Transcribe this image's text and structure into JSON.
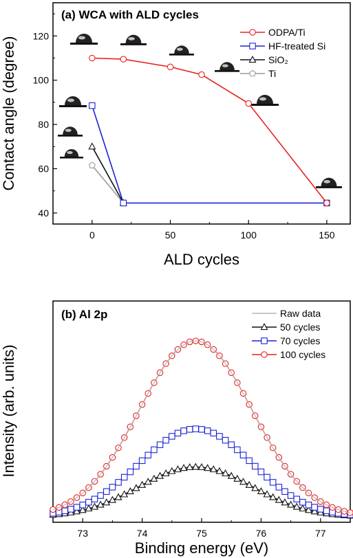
{
  "chart_data": [
    {
      "type": "line",
      "title": "(a) WCA with ALD cycles",
      "xlabel": "ALD cycles",
      "ylabel": "Contact angle (degree)",
      "xlim": [
        -25,
        165
      ],
      "ylim": [
        35,
        135
      ],
      "xticks": [
        0,
        50,
        100,
        150
      ],
      "yticks": [
        40,
        60,
        80,
        100,
        120
      ],
      "legend_position": "top-right",
      "droplet_icons": true,
      "series": [
        {
          "name": "ODPA/Ti",
          "color": "#e8201f",
          "marker": "circle",
          "x": [
            0,
            20,
            50,
            70,
            100,
            150
          ],
          "y": [
            110,
            109.5,
            106,
            102.5,
            89.5,
            44.5
          ]
        },
        {
          "name": "HF-treated Si",
          "color": "#1a22d4",
          "marker": "square",
          "x": [
            0,
            20,
            150
          ],
          "y": [
            88.5,
            44.5,
            44.5
          ]
        },
        {
          "name": "SiO₂",
          "color": "#111111",
          "marker": "triangle",
          "x": [
            0,
            20
          ],
          "y": [
            70,
            44.5
          ]
        },
        {
          "name": "Ti",
          "color": "#9a9a9a",
          "marker": "pentagon",
          "x": [
            0,
            20
          ],
          "y": [
            61.5,
            44.5
          ]
        }
      ]
    },
    {
      "type": "line",
      "title": "(b) Al 2p",
      "xlabel": "Binding energy (eV)",
      "ylabel": "Intensity (arb. units)",
      "xlim": [
        72.5,
        77.5
      ],
      "ylim": [
        0,
        1.22
      ],
      "xticks": [
        73,
        74,
        75,
        76,
        77
      ],
      "yticks": [],
      "legend_position": "top-right",
      "peak_center_eV": 74.9,
      "peak_width_eV": 0.95,
      "series": [
        {
          "name": "Raw data",
          "color": "#b5b5b5",
          "marker": "none",
          "baseline": 0.03,
          "peak": 1.0
        },
        {
          "name": "50 cycles",
          "color": "#111111",
          "marker": "triangle",
          "baseline": 0.03,
          "peak": 0.305
        },
        {
          "name": "70 cycles",
          "color": "#1a22d4",
          "marker": "square",
          "baseline": 0.03,
          "peak": 0.515
        },
        {
          "name": "100 cycles",
          "color": "#e8201f",
          "marker": "circle",
          "baseline": 0.03,
          "peak": 1.0
        }
      ]
    }
  ]
}
